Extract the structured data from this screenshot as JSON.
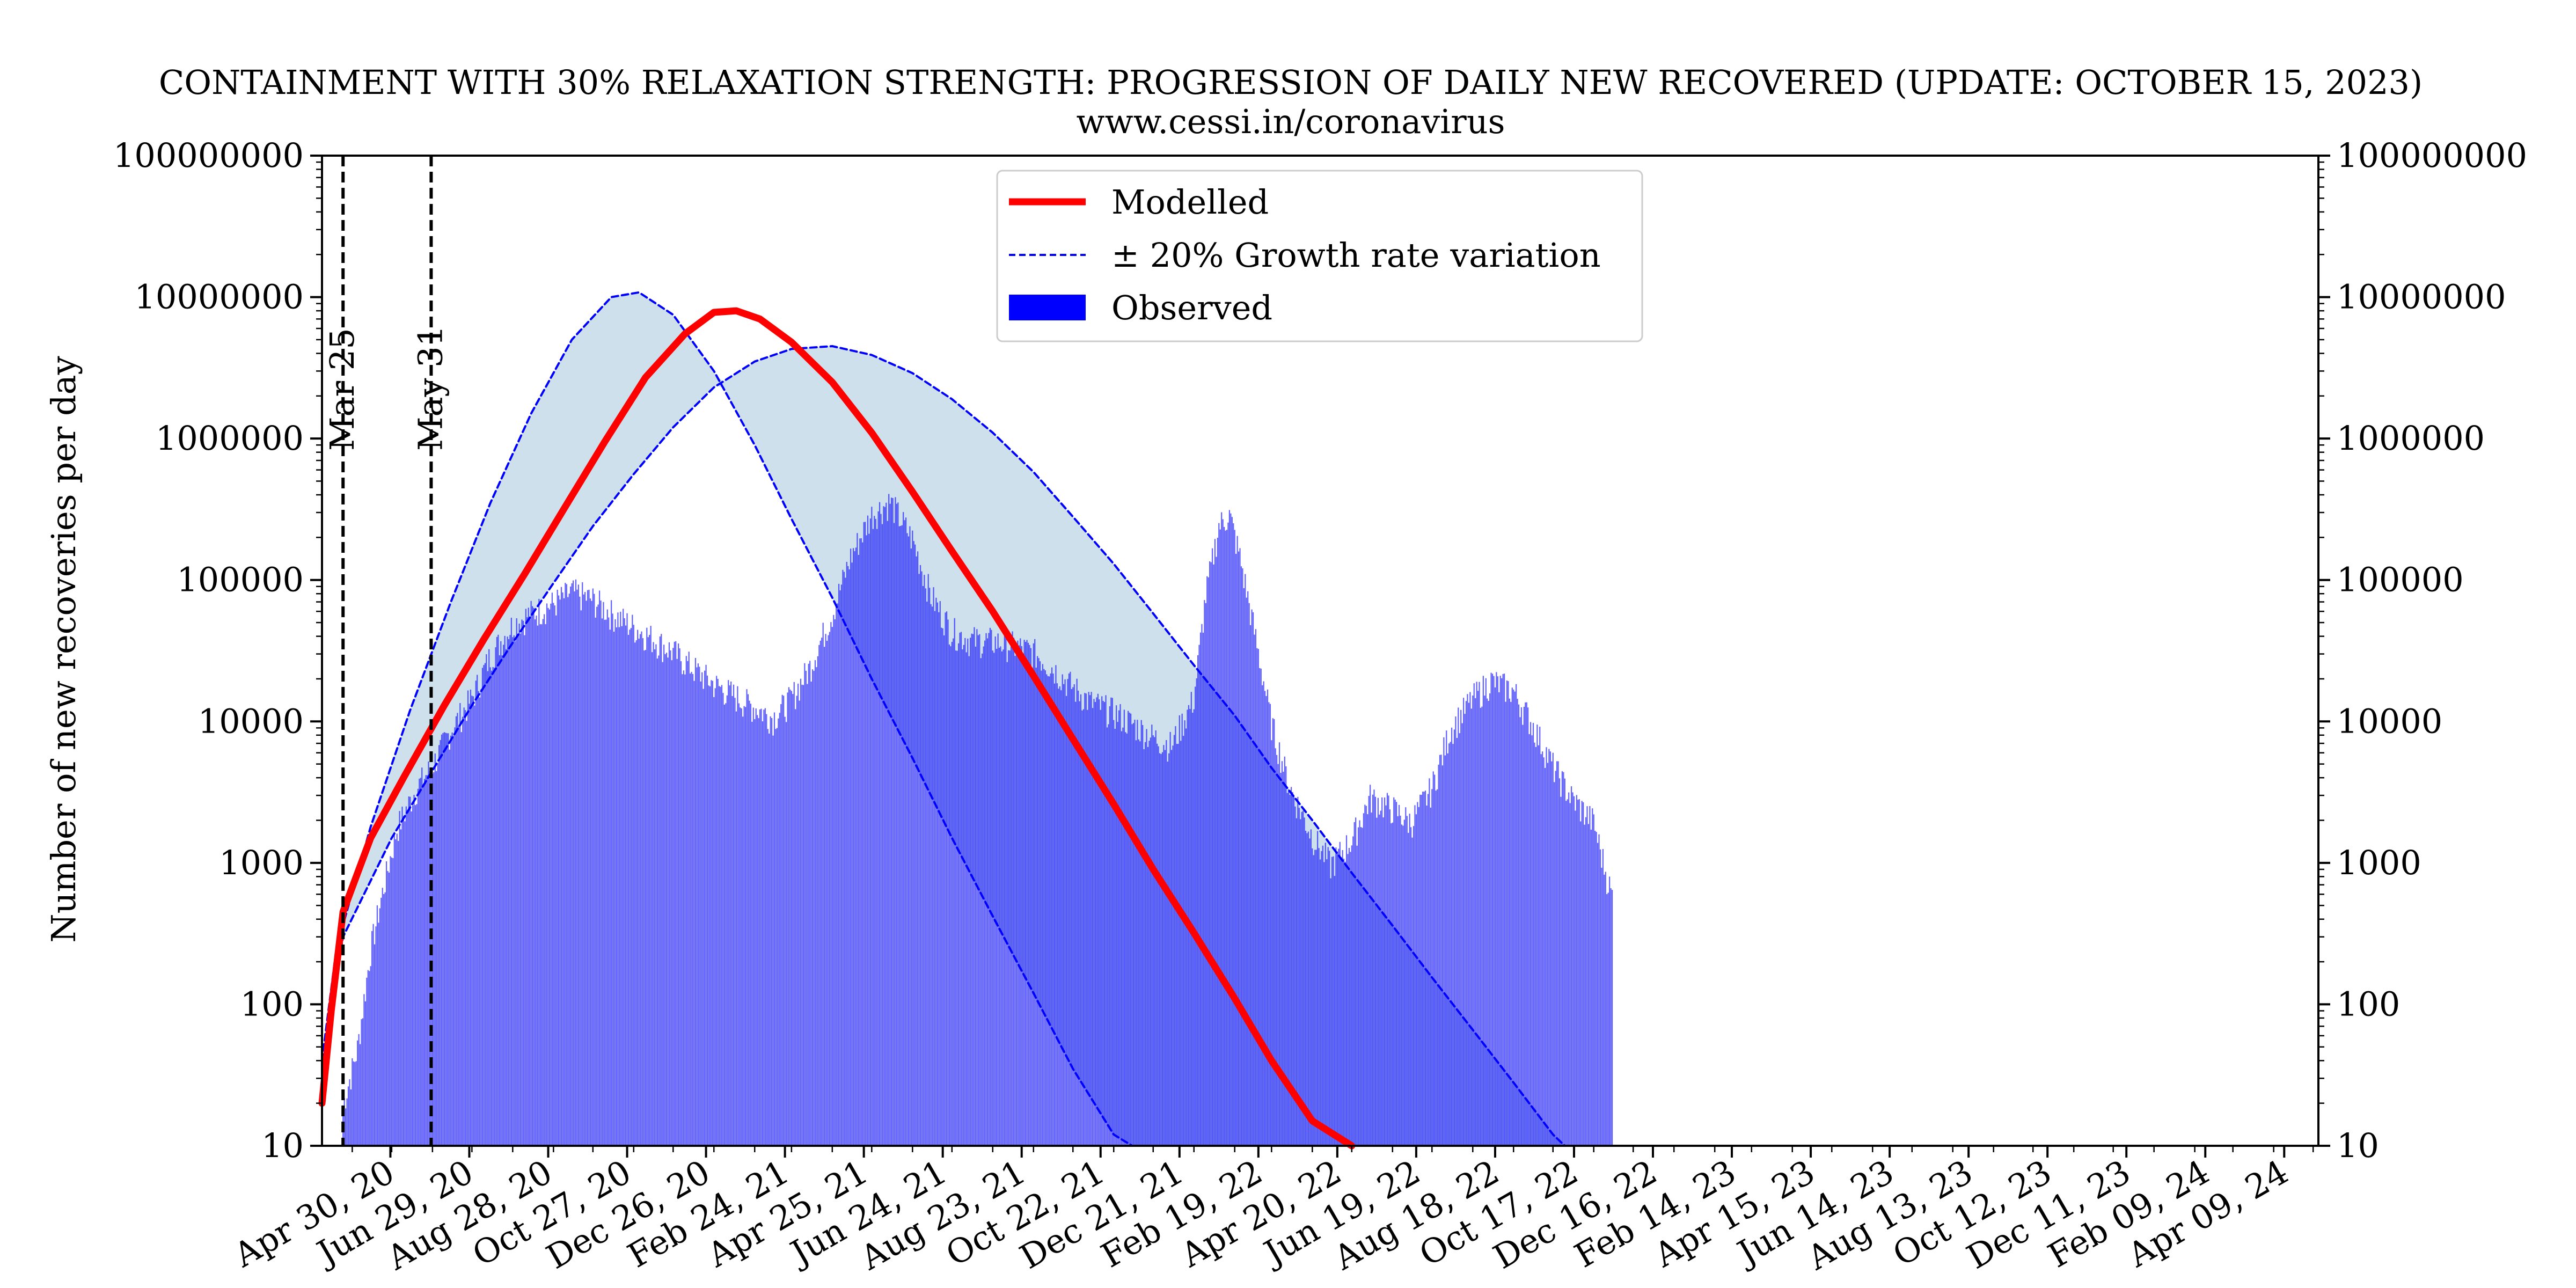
{
  "chart_data": {
    "type": "bar",
    "title": "CONTAINMENT WITH 30% RELAXATION STRENGTH: PROGRESSION OF DAILY NEW RECOVERED (UPDATE: OCTOBER 15, 2023)",
    "subtitle": "www.cessi.in/coronavirus",
    "ylabel": "Number of new recoveries per day",
    "xlabel": "",
    "y_scale": "log",
    "ylim": [
      10,
      100000000
    ],
    "y_ticks": [
      10,
      100,
      1000,
      10000,
      100000,
      1000000,
      10000000,
      100000000
    ],
    "y_tick_labels": [
      "10",
      "100",
      "1000",
      "10000",
      "100000",
      "1000000",
      "10000000",
      "100000000"
    ],
    "right_axis_mirrored": true,
    "xlim": [
      "2020-03-09",
      "2024-05-05"
    ],
    "x_tick_labels": [
      "Apr 30, 20",
      "Jun 29, 20",
      "Aug 28, 20",
      "Oct 27, 20",
      "Dec 26, 20",
      "Feb 24, 21",
      "Apr 25, 21",
      "Jun 24, 21",
      "Aug 23, 21",
      "Oct 22, 21",
      "Dec 21, 21",
      "Feb 19, 22",
      "Apr 20, 22",
      "Jun 19, 22",
      "Aug 18, 22",
      "Oct 17, 22",
      "Dec 16, 22",
      "Feb 14, 23",
      "Apr 15, 23",
      "Jun 14, 23",
      "Aug 13, 23",
      "Oct 12, 23",
      "Dec 11, 23",
      "Feb 09, 24",
      "Apr 09, 24"
    ],
    "x_tick_dates": [
      "2020-04-30",
      "2020-06-29",
      "2020-08-28",
      "2020-10-27",
      "2020-12-26",
      "2021-02-24",
      "2021-04-25",
      "2021-06-24",
      "2021-08-23",
      "2021-10-22",
      "2021-12-21",
      "2022-02-19",
      "2022-04-20",
      "2022-06-19",
      "2022-08-18",
      "2022-10-17",
      "2022-12-16",
      "2023-02-14",
      "2023-04-15",
      "2023-06-14",
      "2023-08-13",
      "2023-10-12",
      "2023-12-11",
      "2024-02-09",
      "2024-04-09"
    ],
    "vertical_lines": [
      {
        "date": "2020-03-25",
        "label": "Mar 25",
        "style": "dashed",
        "color": "#000000"
      },
      {
        "date": "2020-05-31",
        "label": "May 31",
        "style": "dashed",
        "color": "#000000"
      }
    ],
    "legend": {
      "position": "top-center",
      "entries": [
        "Modelled",
        "± 20% Growth rate variation",
        "Observed"
      ]
    },
    "grid": false,
    "band_color": "#cfe0ed",
    "series": [
      {
        "name": "Modelled",
        "kind": "line",
        "color": "#ff0000",
        "points": [
          [
            "2020-03-09",
            20
          ],
          [
            "2020-03-16",
            90
          ],
          [
            "2020-03-25",
            450
          ],
          [
            "2020-04-15",
            1500
          ],
          [
            "2020-05-10",
            4000
          ],
          [
            "2020-06-10",
            13000
          ],
          [
            "2020-07-10",
            38000
          ],
          [
            "2020-08-10",
            110000
          ],
          [
            "2020-09-10",
            330000
          ],
          [
            "2020-10-10",
            950000
          ],
          [
            "2020-11-10",
            2700000
          ],
          [
            "2020-12-10",
            5500000
          ],
          [
            "2021-01-01",
            7800000
          ],
          [
            "2021-01-18",
            8000000
          ],
          [
            "2021-02-05",
            7000000
          ],
          [
            "2021-03-01",
            4800000
          ],
          [
            "2021-04-01",
            2500000
          ],
          [
            "2021-05-01",
            1100000
          ],
          [
            "2021-06-01",
            420000
          ],
          [
            "2021-07-01",
            160000
          ],
          [
            "2021-08-01",
            60000
          ],
          [
            "2021-09-01",
            21000
          ],
          [
            "2021-10-01",
            7500
          ],
          [
            "2021-11-01",
            2600
          ],
          [
            "2021-12-01",
            900
          ],
          [
            "2022-01-01",
            320
          ],
          [
            "2022-02-01",
            110
          ],
          [
            "2022-03-01",
            40
          ],
          [
            "2022-04-01",
            15
          ],
          [
            "2022-05-01",
            10
          ]
        ]
      },
      {
        "name": "± 20% Growth rate variation",
        "kind": "dashed-line",
        "color": "#0000ff",
        "points": [
          [
            "2020-03-09",
            40
          ],
          [
            "2020-03-20",
            250
          ],
          [
            "2020-04-15",
            1800
          ],
          [
            "2020-05-15",
            12000
          ],
          [
            "2020-06-15",
            70000
          ],
          [
            "2020-07-15",
            350000
          ],
          [
            "2020-08-15",
            1500000
          ],
          [
            "2020-09-15",
            5000000
          ],
          [
            "2020-10-15",
            10000000
          ],
          [
            "2020-11-05",
            10800000
          ],
          [
            "2020-12-01",
            7500000
          ],
          [
            "2021-01-01",
            3000000
          ],
          [
            "2021-02-01",
            900000
          ],
          [
            "2021-03-01",
            270000
          ],
          [
            "2021-04-01",
            75000
          ],
          [
            "2021-05-01",
            20000
          ],
          [
            "2021-06-01",
            5500
          ],
          [
            "2021-07-01",
            1500
          ],
          [
            "2021-08-01",
            420
          ],
          [
            "2021-09-01",
            120
          ],
          [
            "2021-10-01",
            35
          ],
          [
            "2021-11-01",
            12
          ],
          [
            "2021-11-15",
            10
          ]
        ]
      },
      {
        "name": "",
        "kind": "dashed-line",
        "color": "#0000ff",
        "points": [
          [
            "2020-03-09",
            40
          ],
          [
            "2020-03-25",
            300
          ],
          [
            "2020-05-01",
            1500
          ],
          [
            "2020-06-01",
            4500
          ],
          [
            "2020-07-01",
            13000
          ],
          [
            "2020-08-01",
            36000
          ],
          [
            "2020-09-01",
            95000
          ],
          [
            "2020-10-01",
            240000
          ],
          [
            "2020-11-01",
            560000
          ],
          [
            "2020-12-01",
            1200000
          ],
          [
            "2021-01-01",
            2300000
          ],
          [
            "2021-02-01",
            3500000
          ],
          [
            "2021-03-01",
            4300000
          ],
          [
            "2021-04-01",
            4500000
          ],
          [
            "2021-05-01",
            3900000
          ],
          [
            "2021-06-01",
            2900000
          ],
          [
            "2021-07-01",
            1900000
          ],
          [
            "2021-08-01",
            1100000
          ],
          [
            "2021-09-01",
            580000
          ],
          [
            "2021-10-01",
            280000
          ],
          [
            "2021-11-01",
            130000
          ],
          [
            "2021-12-01",
            58000
          ],
          [
            "2022-01-01",
            25000
          ],
          [
            "2022-02-01",
            11000
          ],
          [
            "2022-03-01",
            4700
          ],
          [
            "2022-04-01",
            2000
          ],
          [
            "2022-05-01",
            850
          ],
          [
            "2022-06-01",
            360
          ],
          [
            "2022-07-01",
            155
          ],
          [
            "2022-08-01",
            66
          ],
          [
            "2022-09-01",
            28
          ],
          [
            "2022-10-01",
            12
          ],
          [
            "2022-10-10",
            10
          ]
        ]
      },
      {
        "name": "Observed",
        "kind": "bar",
        "color": "#0000ff",
        "points": [
          [
            "2020-03-25",
            20
          ],
          [
            "2020-04-05",
            50
          ],
          [
            "2020-04-15",
            250
          ],
          [
            "2020-04-25",
            700
          ],
          [
            "2020-05-05",
            1800
          ],
          [
            "2020-05-20",
            3500
          ],
          [
            "2020-06-01",
            5000
          ],
          [
            "2020-06-15",
            9000
          ],
          [
            "2020-07-01",
            15000
          ],
          [
            "2020-07-15",
            30000
          ],
          [
            "2020-08-01",
            50000
          ],
          [
            "2020-08-15",
            60000
          ],
          [
            "2020-09-01",
            70000
          ],
          [
            "2020-09-15",
            85000
          ],
          [
            "2020-10-01",
            75000
          ],
          [
            "2020-10-15",
            60000
          ],
          [
            "2020-11-01",
            48000
          ],
          [
            "2020-11-15",
            40000
          ],
          [
            "2020-12-01",
            32000
          ],
          [
            "2020-12-15",
            25000
          ],
          [
            "2021-01-01",
            19000
          ],
          [
            "2021-01-15",
            16000
          ],
          [
            "2021-02-01",
            13000
          ],
          [
            "2021-02-15",
            11000
          ],
          [
            "2021-03-01",
            15000
          ],
          [
            "2021-03-15",
            25000
          ],
          [
            "2021-04-01",
            60000
          ],
          [
            "2021-04-15",
            150000
          ],
          [
            "2021-05-01",
            300000
          ],
          [
            "2021-05-15",
            370000
          ],
          [
            "2021-06-01",
            200000
          ],
          [
            "2021-06-15",
            80000
          ],
          [
            "2021-07-01",
            45000
          ],
          [
            "2021-07-15",
            39000
          ],
          [
            "2021-08-01",
            38000
          ],
          [
            "2021-08-15",
            36000
          ],
          [
            "2021-09-01",
            32000
          ],
          [
            "2021-09-15",
            25000
          ],
          [
            "2021-10-01",
            18000
          ],
          [
            "2021-10-15",
            14000
          ],
          [
            "2021-11-01",
            12000
          ],
          [
            "2021-11-15",
            10000
          ],
          [
            "2021-12-01",
            8000
          ],
          [
            "2021-12-15",
            7000
          ],
          [
            "2022-01-01",
            15000
          ],
          [
            "2022-01-10",
            80000
          ],
          [
            "2022-01-20",
            250000
          ],
          [
            "2022-01-28",
            300000
          ],
          [
            "2022-02-05",
            150000
          ],
          [
            "2022-02-15",
            50000
          ],
          [
            "2022-03-01",
            10000
          ],
          [
            "2022-03-15",
            3500
          ],
          [
            "2022-04-01",
            1600
          ],
          [
            "2022-04-15",
            1000
          ],
          [
            "2022-05-01",
            1500
          ],
          [
            "2022-05-15",
            3000
          ],
          [
            "2022-06-01",
            2500
          ],
          [
            "2022-06-15",
            2000
          ],
          [
            "2022-07-01",
            3500
          ],
          [
            "2022-07-15",
            9000
          ],
          [
            "2022-08-01",
            15000
          ],
          [
            "2022-08-15",
            20000
          ],
          [
            "2022-09-01",
            17000
          ],
          [
            "2022-09-15",
            10000
          ],
          [
            "2022-10-01",
            5000
          ],
          [
            "2022-10-15",
            3000
          ],
          [
            "2022-11-01",
            2000
          ],
          [
            "2022-11-10",
            900
          ],
          [
            "2022-11-15",
            600
          ]
        ]
      }
    ]
  }
}
